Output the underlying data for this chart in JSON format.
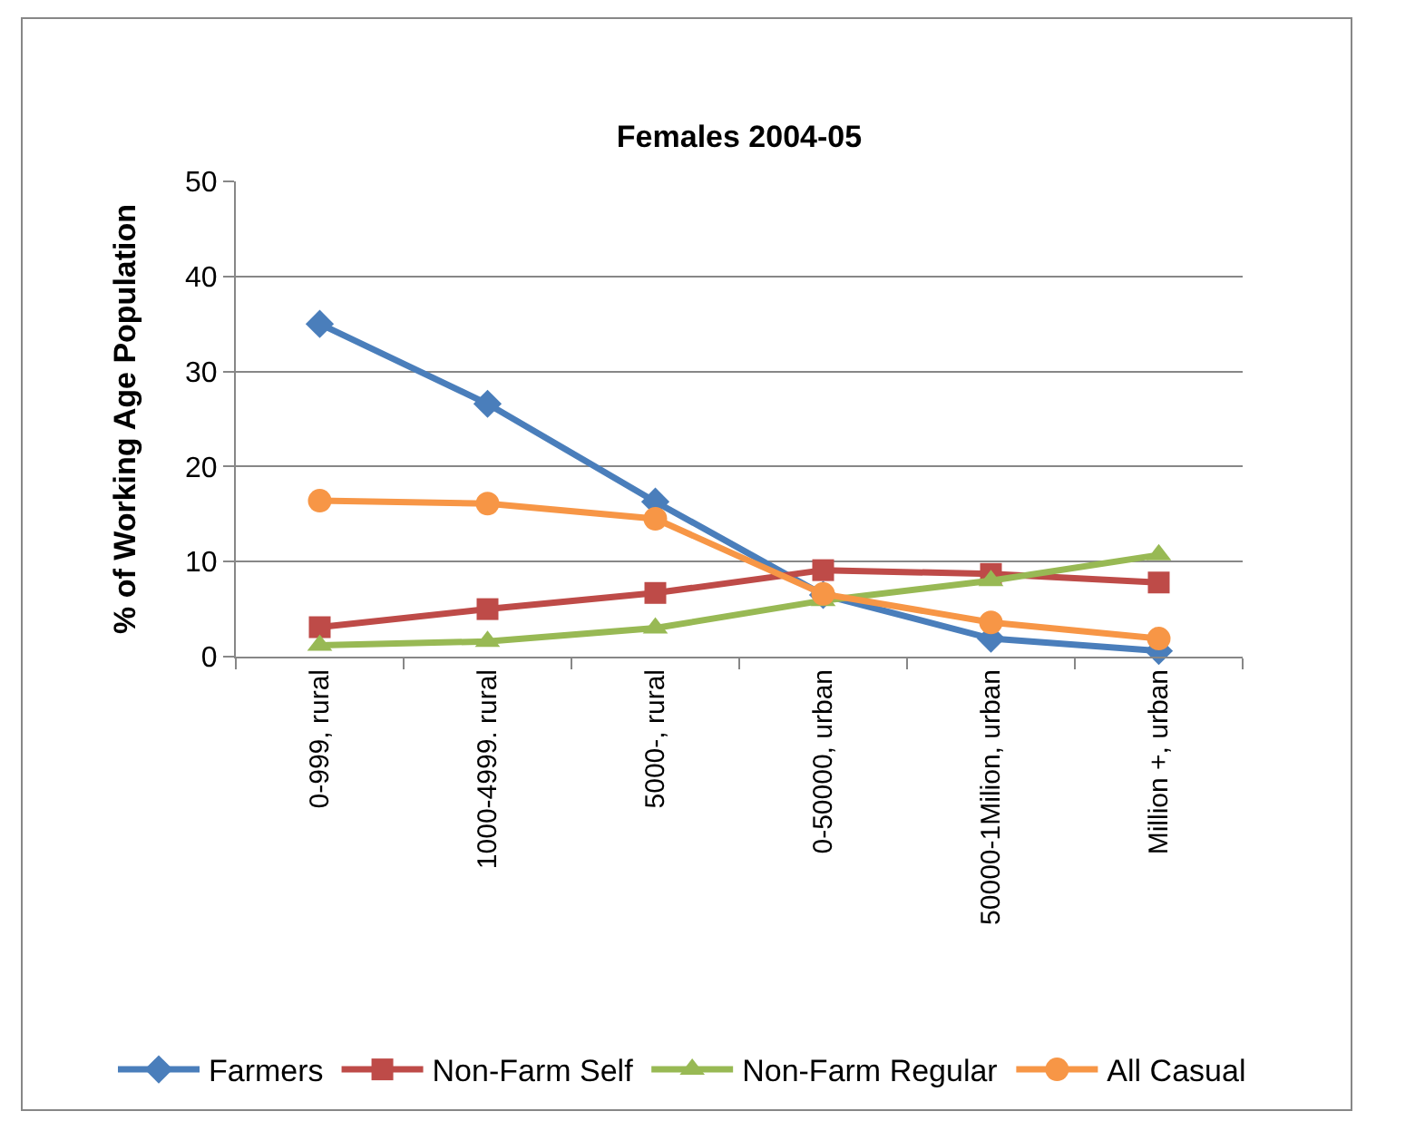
{
  "chart_data": {
    "type": "line",
    "title": "Females 2004-05",
    "ylabel": "% of Working Age Population",
    "categories": [
      "0-999, rural",
      "1000-4999. rural",
      "5000-, rural",
      "0-50000, urban",
      "50000-1Milion, urban",
      "Million +, urban"
    ],
    "series": [
      {
        "name": "Farmers",
        "color": "#4a7ebb",
        "marker": "diamond",
        "values": [
          35.0,
          26.6,
          16.3,
          6.5,
          1.9,
          0.6
        ]
      },
      {
        "name": "Non-Farm Self",
        "color": "#be4b48",
        "marker": "square",
        "values": [
          3.1,
          5.0,
          6.7,
          9.1,
          8.7,
          7.8
        ]
      },
      {
        "name": "Non-Farm Regular",
        "color": "#98b954",
        "marker": "triangle",
        "values": [
          1.2,
          1.6,
          3.0,
          5.9,
          8.0,
          10.7
        ]
      },
      {
        "name": "All Casual",
        "color": "#f79646",
        "marker": "circle",
        "values": [
          16.4,
          16.1,
          14.5,
          6.6,
          3.6,
          1.9
        ]
      }
    ],
    "ylim": [
      0,
      50
    ],
    "yticks": [
      0,
      10,
      20,
      30,
      40,
      50
    ],
    "grid": "y",
    "legend": "bottom"
  }
}
